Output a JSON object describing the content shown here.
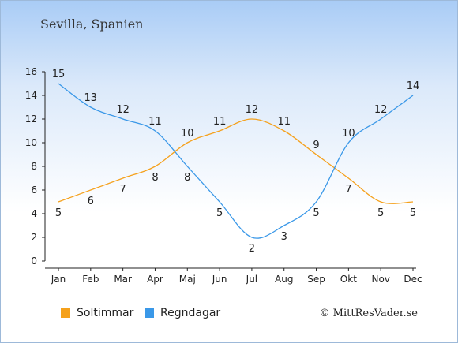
{
  "title": "Sevilla, Spanien",
  "credit": "© MittResVader.se",
  "colors": {
    "sun": "#f5a11c",
    "rain": "#3a98e8",
    "axis": "#222222",
    "text": "#222222"
  },
  "legend": [
    {
      "label": "Soltimmar",
      "color": "#f5a11c"
    },
    {
      "label": "Regndagar",
      "color": "#3a98e8"
    }
  ],
  "chart_data": {
    "type": "line",
    "categories": [
      "Jan",
      "Feb",
      "Mar",
      "Apr",
      "Maj",
      "Jun",
      "Jul",
      "Aug",
      "Sep",
      "Okt",
      "Nov",
      "Dec"
    ],
    "series": [
      {
        "name": "Soltimmar",
        "values": [
          5,
          6,
          7,
          8,
          10,
          11,
          12,
          11,
          9,
          7,
          5,
          5
        ],
        "color": "#f5a11c"
      },
      {
        "name": "Regndagar",
        "values": [
          15,
          13,
          12,
          11,
          8,
          5,
          2,
          3,
          5,
          10,
          12,
          14
        ],
        "color": "#3a98e8"
      }
    ],
    "ylim": [
      0,
      16
    ],
    "yticks": [
      0,
      2,
      4,
      6,
      8,
      10,
      12,
      14,
      16
    ],
    "grid": false,
    "legend_position": "bottom-left"
  }
}
